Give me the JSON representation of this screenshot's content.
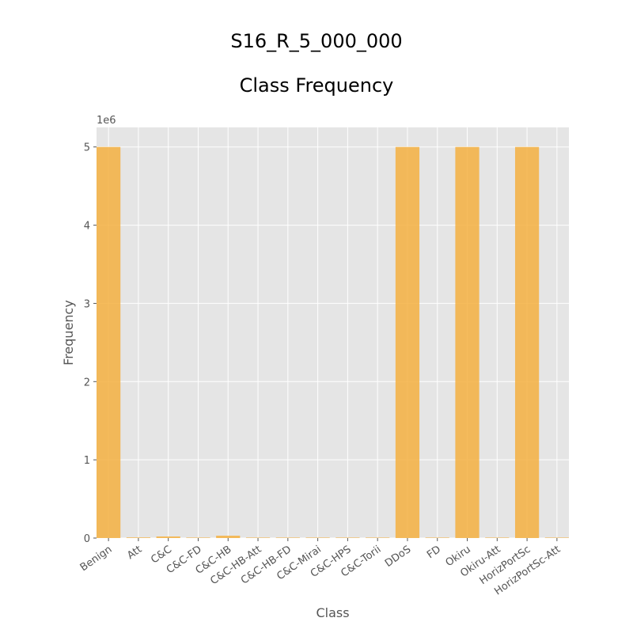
{
  "chart_data": {
    "type": "bar",
    "title": "S16_R_5_000_000",
    "subtitle": "Class Frequency",
    "xlabel": "Class",
    "ylabel": "Frequency",
    "y_offset_label": "1e6",
    "categories": [
      "Benign",
      "Att",
      "C&C",
      "C&C-FD",
      "C&C-HB",
      "C&C-HB-Att",
      "C&C-HB-FD",
      "C&C-Mirai",
      "C&C-HPS",
      "C&C-Torii",
      "DDoS",
      "FD",
      "Okiru",
      "Okiru-Att",
      "HorizPortSc",
      "HorizPortSc-Att"
    ],
    "values": [
      5000000,
      8000,
      20000,
      500,
      30000,
      300,
      100,
      50,
      200,
      100,
      5000000,
      100,
      5000000,
      2000,
      5000000,
      100
    ],
    "ylim": [
      0,
      5250000
    ],
    "yticks": [
      0,
      1,
      2,
      3,
      4,
      5
    ],
    "ytick_scale": 1000000,
    "grid": true,
    "style": "ggplot",
    "bar_color": "#F5B041",
    "background_color": "#E5E5E5"
  }
}
